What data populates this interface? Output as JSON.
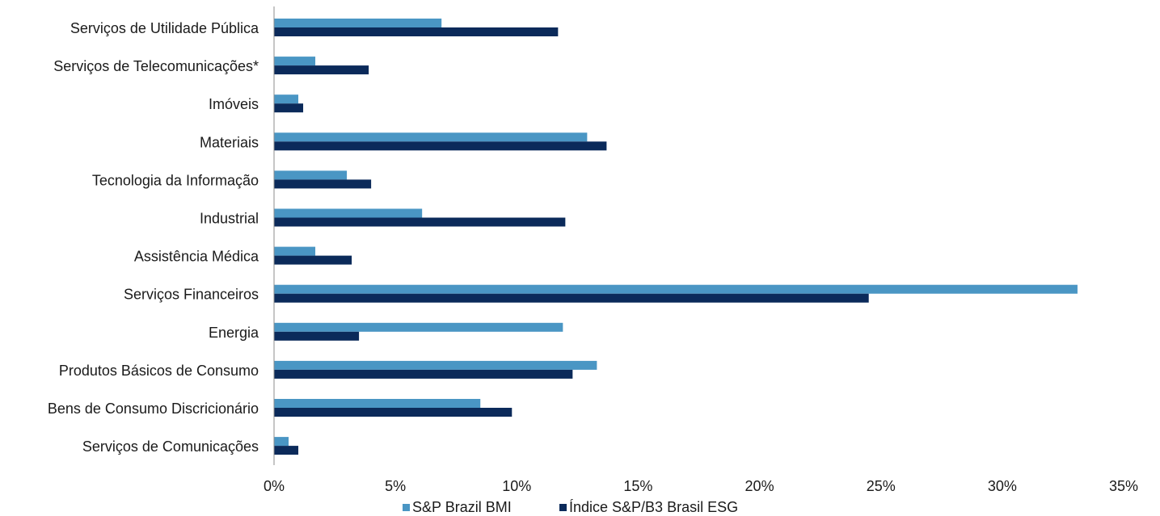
{
  "chart_data": {
    "type": "bar",
    "orientation": "horizontal",
    "categories": [
      "Serviços de Utilidade Pública",
      "Serviços de Telecomunicações*",
      "Imóveis",
      "Materiais",
      "Tecnologia da Informação",
      "Industrial",
      "Assistência Médica",
      "Serviços Financeiros",
      "Energia",
      "Produtos Básicos de Consumo",
      "Bens de Consumo Discricionário",
      "Serviços de Comunicações"
    ],
    "series": [
      {
        "name": "S&P Brazil BMI",
        "color": "#4a96c4",
        "values": [
          6.9,
          1.7,
          1.0,
          12.9,
          3.0,
          6.1,
          1.7,
          33.1,
          11.9,
          13.3,
          8.5,
          0.6
        ]
      },
      {
        "name": "Índice S&P/B3 Brasil ESG",
        "color": "#0b2a5a",
        "values": [
          11.7,
          3.9,
          1.2,
          13.7,
          4.0,
          12.0,
          3.2,
          24.5,
          3.5,
          12.3,
          9.8,
          1.0
        ]
      }
    ],
    "xlim": [
      0,
      35
    ],
    "xticks": [
      "0%",
      "5%",
      "10%",
      "15%",
      "20%",
      "25%",
      "30%",
      "35%"
    ],
    "xtick_values": [
      0,
      5,
      10,
      15,
      20,
      25,
      30,
      35
    ],
    "legend_position": "bottom",
    "grid": false
  }
}
